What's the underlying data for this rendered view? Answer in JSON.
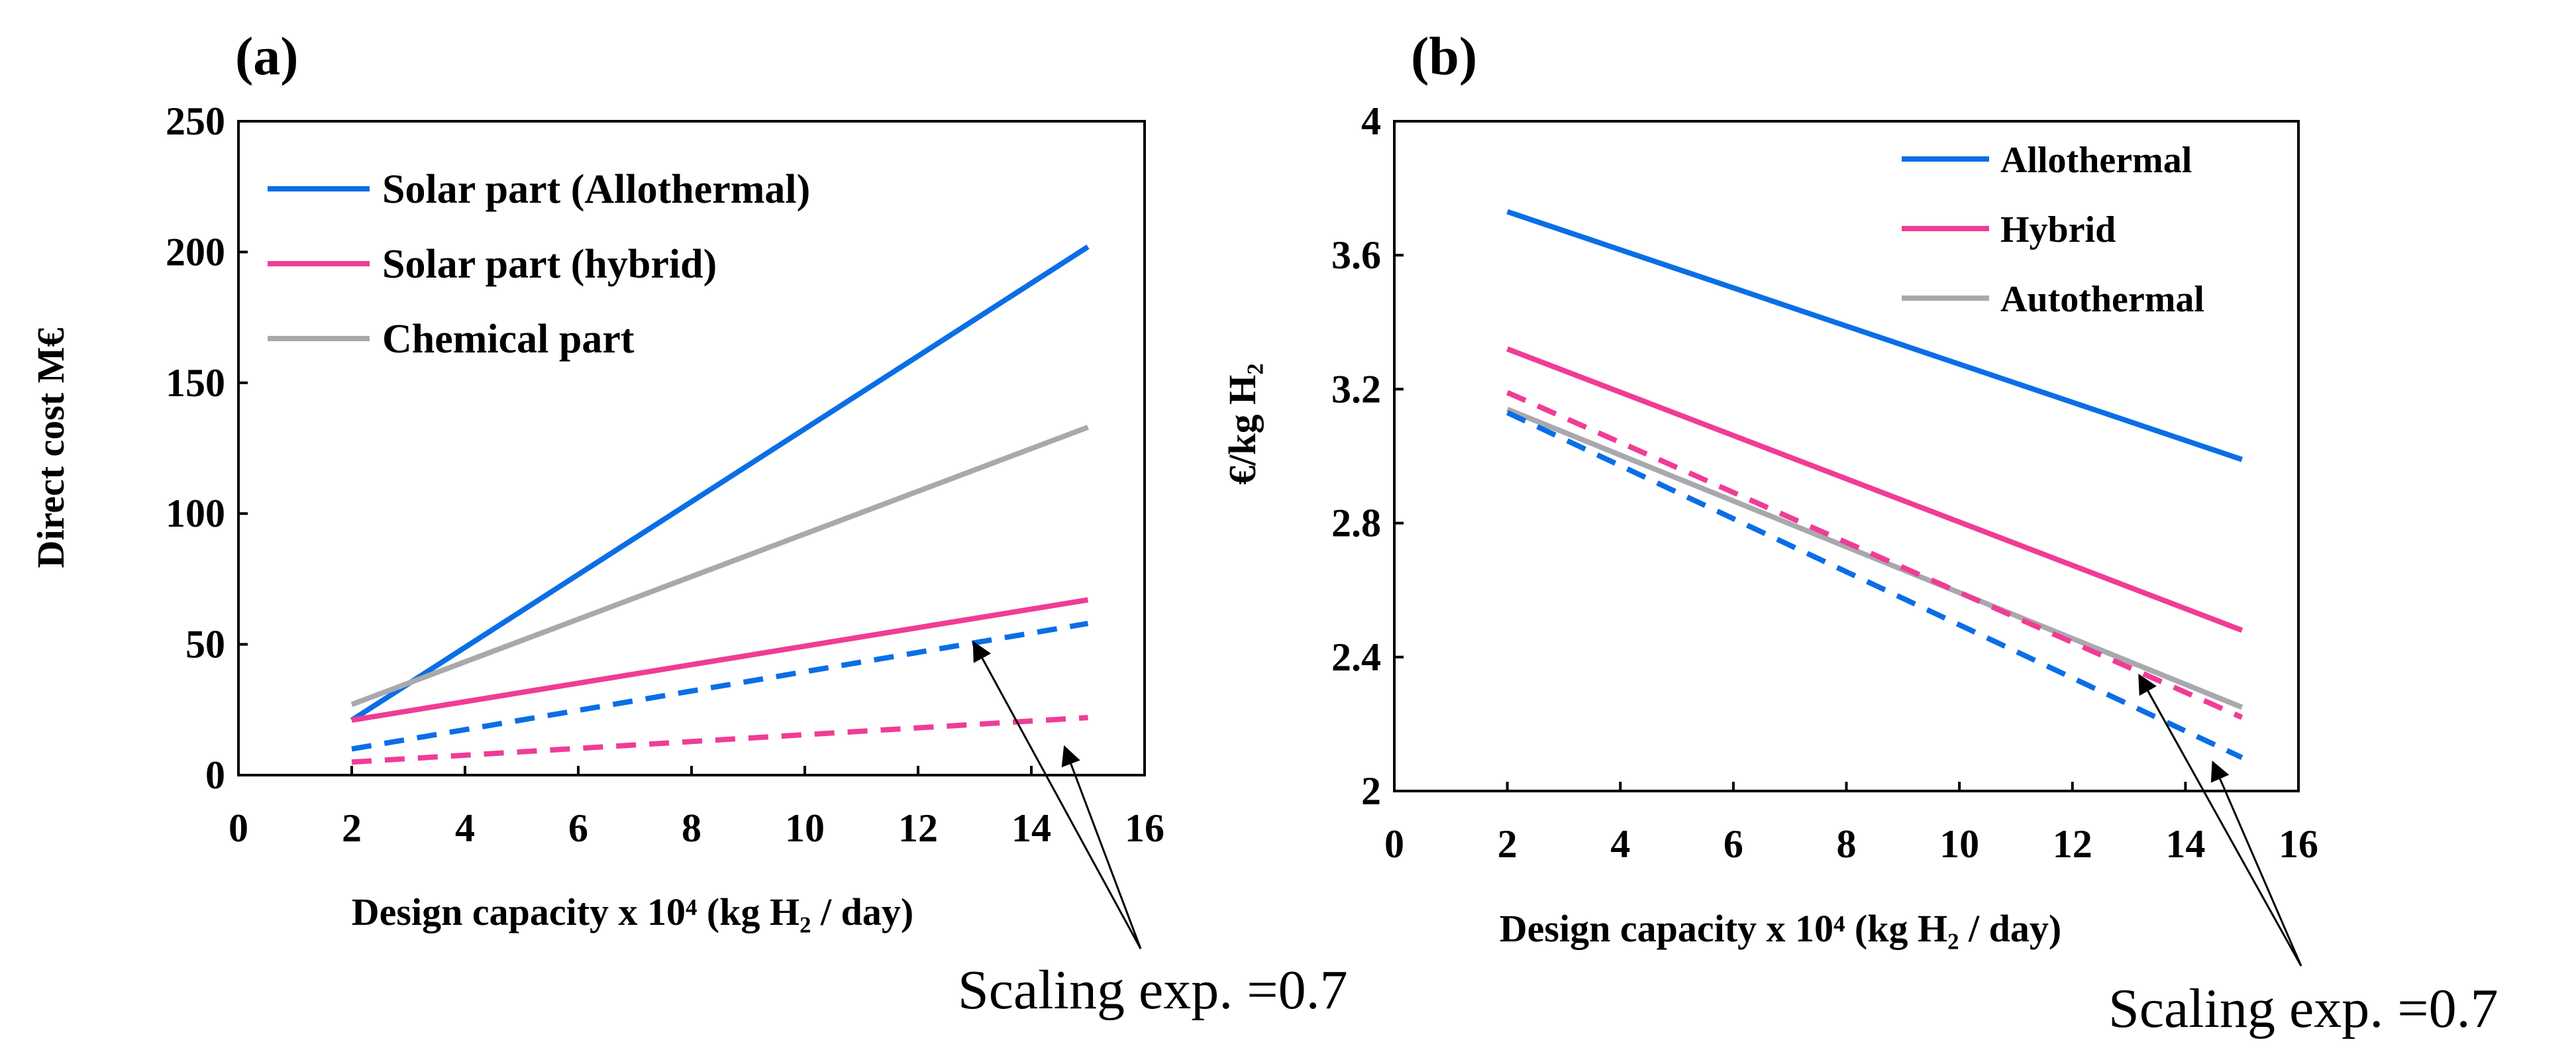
{
  "chart_data": [
    {
      "type": "line",
      "panel_label": "(a)",
      "title": "",
      "xlabel": "Design capacity x 10⁴ (kg H₂ / day)",
      "ylabel": "Direct cost M€",
      "xlim": [
        0,
        16
      ],
      "ylim": [
        0,
        250
      ],
      "xticks": [
        "0",
        "2",
        "4",
        "6",
        "8",
        "10",
        "12",
        "14",
        "16"
      ],
      "yticks": [
        "0",
        "50",
        "100",
        "150",
        "200",
        "250"
      ],
      "grid": false,
      "legend_position": "top-left",
      "series": [
        {
          "name": "Solar part (Allothermal)",
          "color": "#0a6ee6",
          "dash": "solid",
          "x": [
            2,
            15
          ],
          "y": [
            21,
            202
          ],
          "legend": true
        },
        {
          "name": "Solar part (hybrid)",
          "color": "#f03c96",
          "dash": "solid",
          "x": [
            2,
            15
          ],
          "y": [
            21,
            67
          ],
          "legend": true
        },
        {
          "name": "Chemical part",
          "color": "#a9a9ad",
          "dash": "solid",
          "x": [
            2,
            15
          ],
          "y": [
            27,
            133
          ],
          "legend": true
        },
        {
          "name": "Solar part (Allothermal) scaled",
          "color": "#0a6ee6",
          "dash": "dashed",
          "x": [
            2,
            15
          ],
          "y": [
            10,
            58
          ],
          "legend": false
        },
        {
          "name": "Solar part (hybrid) scaled",
          "color": "#f03c96",
          "dash": "dashed",
          "x": [
            2,
            15
          ],
          "y": [
            5,
            22
          ],
          "legend": false
        }
      ],
      "annotation": {
        "text": "Scaling exp. =0.7",
        "arrow_targets": [
          [
            13,
            50
          ],
          [
            14.6,
            10
          ]
        ]
      }
    },
    {
      "type": "line",
      "panel_label": "(b)",
      "title": "",
      "xlabel": "Design capacity x 10⁴ (kg H₂ / day)",
      "ylabel": "€/kg H₂",
      "xlim": [
        0,
        16
      ],
      "ylim": [
        2,
        4
      ],
      "xticks": [
        "0",
        "2",
        "4",
        "6",
        "8",
        "10",
        "12",
        "14",
        "16"
      ],
      "yticks": [
        "2",
        "2.4",
        "2.8",
        "3.2",
        "3.6",
        "4"
      ],
      "grid": false,
      "legend_position": "top-right",
      "series": [
        {
          "name": "Allothermal",
          "color": "#0a6ee6",
          "dash": "solid",
          "x": [
            2,
            15
          ],
          "y": [
            3.73,
            2.99
          ],
          "legend": true
        },
        {
          "name": "Hybrid",
          "color": "#f03c96",
          "dash": "solid",
          "x": [
            2,
            15
          ],
          "y": [
            3.32,
            2.48
          ],
          "legend": true
        },
        {
          "name": "Autothermal",
          "color": "#a9a9ad",
          "dash": "solid",
          "x": [
            2,
            15
          ],
          "y": [
            3.14,
            2.25
          ],
          "legend": true
        },
        {
          "name": "Allothermal scaled",
          "color": "#0a6ee6",
          "dash": "dashed",
          "x": [
            2,
            15
          ],
          "y": [
            3.13,
            2.1
          ],
          "legend": false
        },
        {
          "name": "Hybrid scaled",
          "color": "#f03c96",
          "dash": "dashed",
          "x": [
            2,
            15
          ],
          "y": [
            3.19,
            2.22
          ],
          "legend": false
        }
      ],
      "annotation": {
        "text": "Scaling exp. =0.7",
        "arrow_targets": [
          [
            13.2,
            2.34
          ],
          [
            14.5,
            2.08
          ]
        ]
      }
    }
  ]
}
